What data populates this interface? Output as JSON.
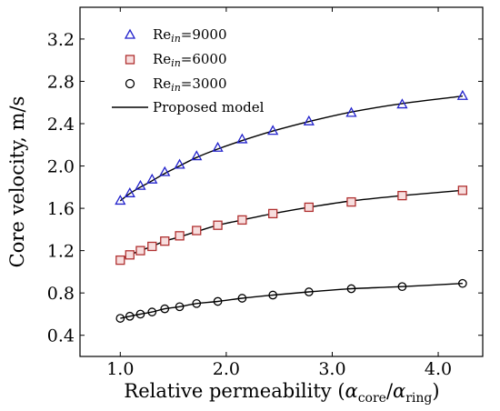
{
  "chart_data": {
    "type": "scatter",
    "xlabel": "Relative permeability (α_core/α_ring)",
    "xlabel_parts": {
      "prefix": "Relative permeability (",
      "alpha1": "α",
      "sub1": "core",
      "slash": "/",
      "alpha2": "α",
      "sub2": "ring",
      "suffix": ")"
    },
    "ylabel": "Core velocity, m/s",
    "xlim": [
      0.62,
      4.42
    ],
    "ylim": [
      0.2,
      3.5
    ],
    "xticks": [
      1.0,
      2.0,
      3.0,
      4.0
    ],
    "xtick_labels": [
      "1.0",
      "2.0",
      "3.0",
      "4.0"
    ],
    "yticks": [
      0.4,
      0.8,
      1.2,
      1.6,
      2.0,
      2.4,
      2.8,
      3.2
    ],
    "ytick_labels": [
      "0.4",
      "0.8",
      "1.2",
      "1.6",
      "2.0",
      "2.4",
      "2.8",
      "3.2"
    ],
    "grid": false,
    "legend_position": "top-left",
    "x": [
      1.0,
      1.09,
      1.19,
      1.3,
      1.42,
      1.56,
      1.72,
      1.92,
      2.15,
      2.44,
      2.78,
      3.18,
      3.66,
      4.23
    ],
    "series": [
      {
        "name": "Re_in=9000",
        "legend": {
          "base": "Re",
          "sub": "in",
          "value": "=9000"
        },
        "marker": "triangle",
        "color": "#2222cc",
        "values": [
          1.67,
          1.74,
          1.81,
          1.87,
          1.94,
          2.01,
          2.09,
          2.17,
          2.25,
          2.33,
          2.42,
          2.5,
          2.58,
          2.66
        ],
        "model": [
          1.67,
          1.74,
          1.8,
          1.86,
          1.93,
          2.0,
          2.08,
          2.16,
          2.24,
          2.33,
          2.42,
          2.51,
          2.59,
          2.66
        ]
      },
      {
        "name": "Re_in=6000",
        "legend": {
          "base": "Re",
          "sub": "in",
          "value": "=6000"
        },
        "marker": "square",
        "color": "#b03030",
        "fill": "#f7dede",
        "values": [
          1.11,
          1.16,
          1.2,
          1.24,
          1.29,
          1.34,
          1.39,
          1.44,
          1.49,
          1.55,
          1.61,
          1.66,
          1.72,
          1.77
        ],
        "model": [
          1.11,
          1.16,
          1.2,
          1.24,
          1.29,
          1.33,
          1.38,
          1.44,
          1.49,
          1.55,
          1.61,
          1.67,
          1.72,
          1.77
        ]
      },
      {
        "name": "Re_in=3000",
        "legend": {
          "base": "Re",
          "sub": "in",
          "value": "=3000"
        },
        "marker": "circle",
        "color": "#000000",
        "values": [
          0.56,
          0.58,
          0.6,
          0.62,
          0.65,
          0.67,
          0.7,
          0.72,
          0.75,
          0.78,
          0.81,
          0.84,
          0.86,
          0.89
        ],
        "model": [
          0.56,
          0.58,
          0.6,
          0.62,
          0.65,
          0.67,
          0.7,
          0.72,
          0.75,
          0.78,
          0.81,
          0.84,
          0.86,
          0.89
        ]
      }
    ],
    "model_legend": "Proposed model",
    "model_color": "#000000"
  }
}
